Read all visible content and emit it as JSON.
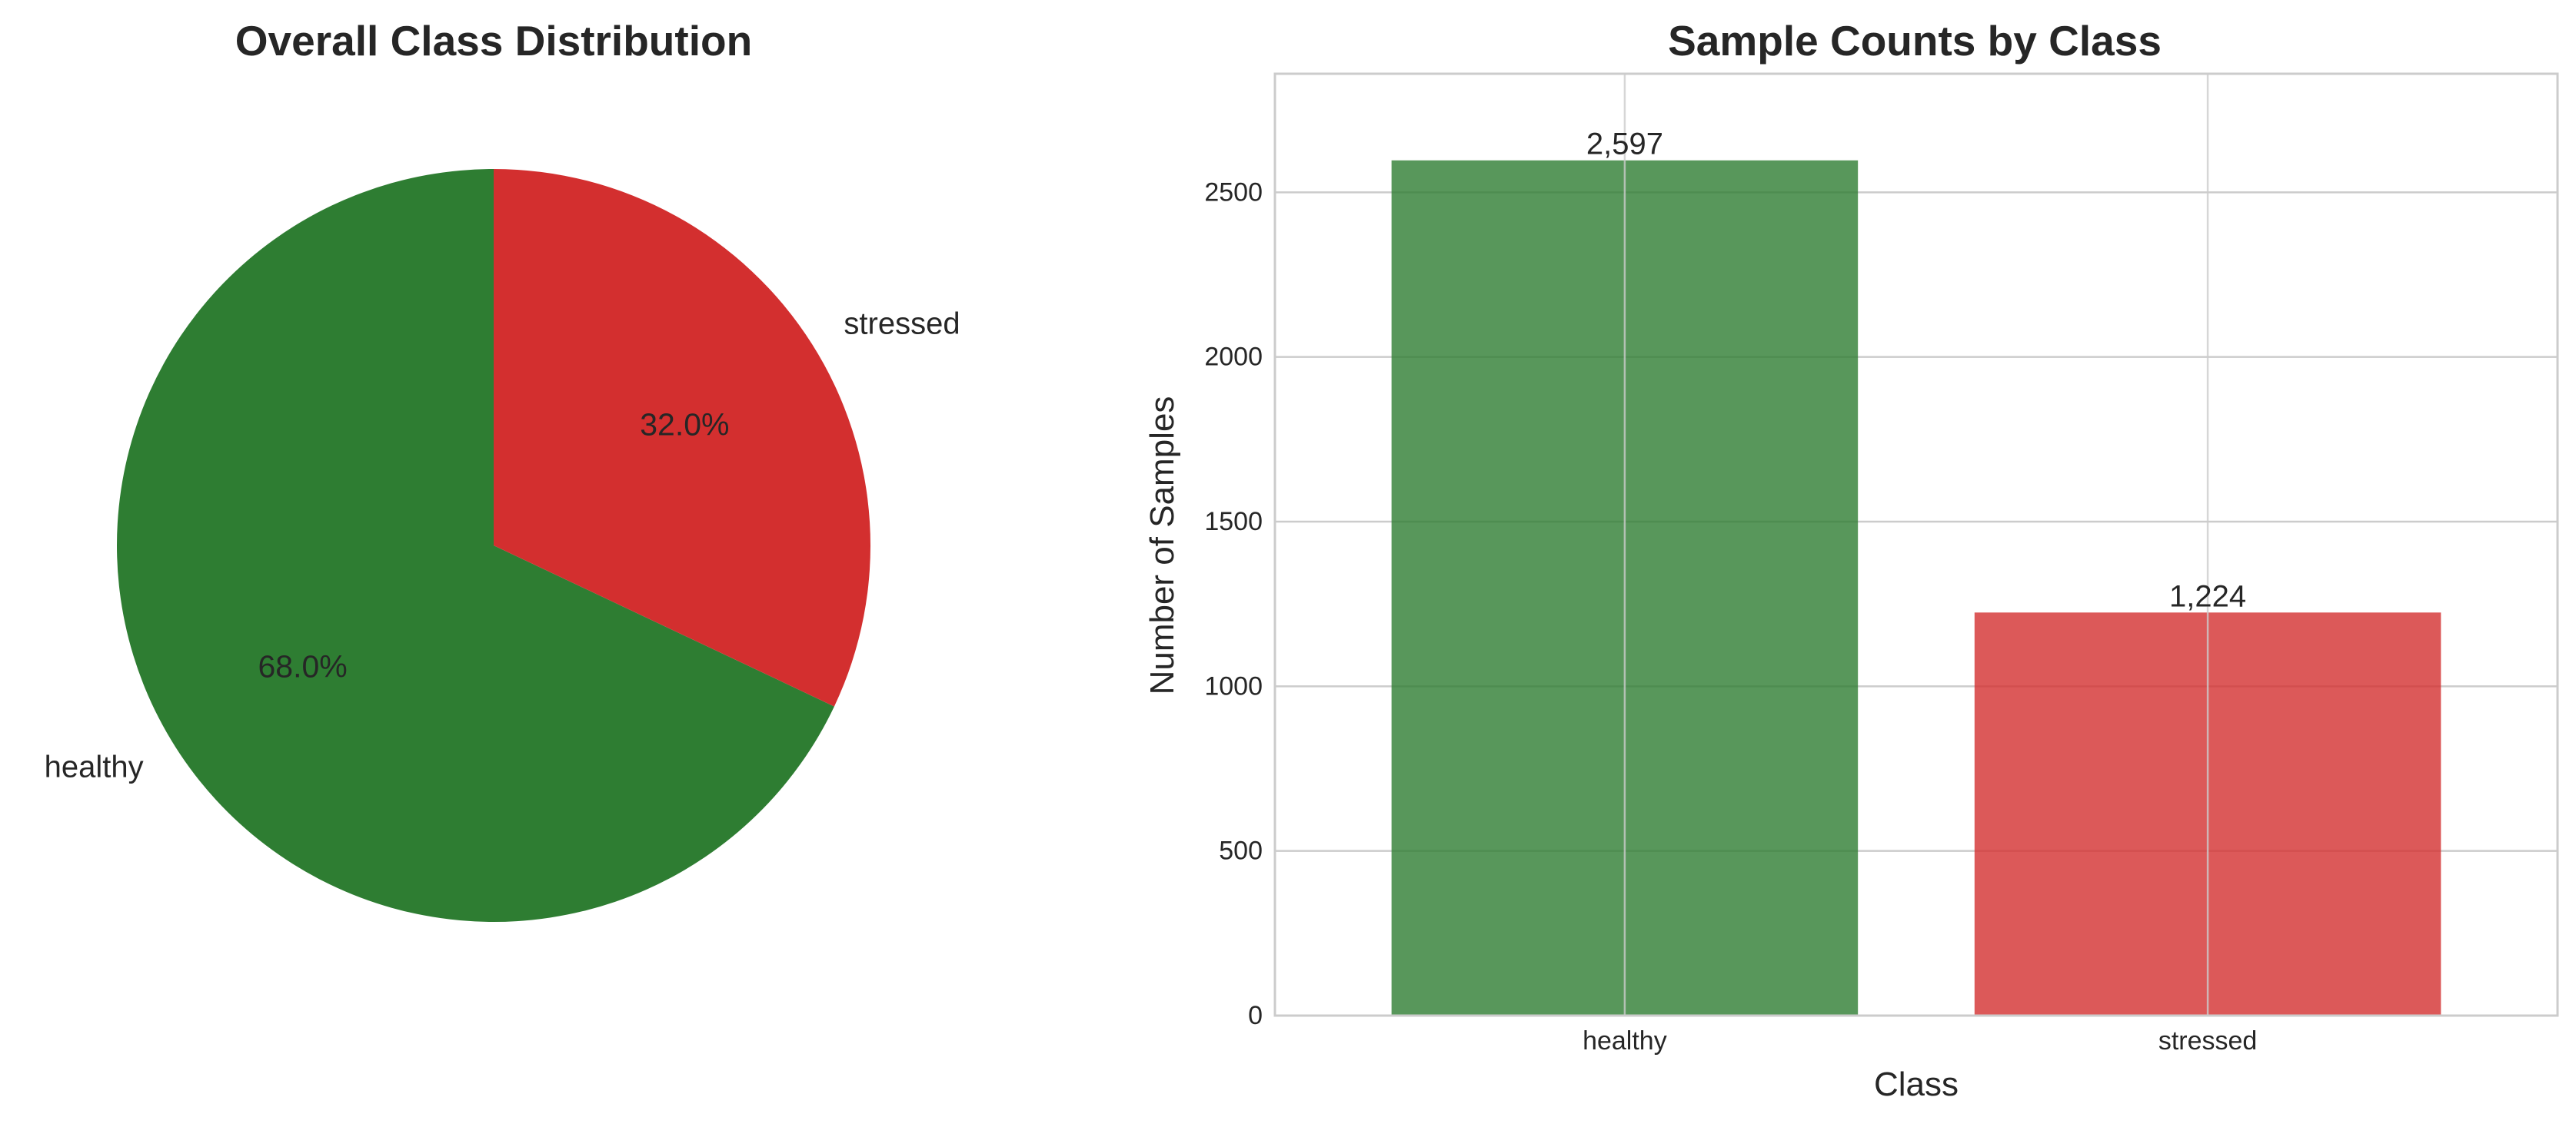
{
  "chart_data": [
    {
      "type": "pie",
      "title": "Overall Class Distribution",
      "slices": [
        {
          "label": "healthy",
          "value": 2597,
          "percent_label": "68.0%",
          "color": "#2e7d32"
        },
        {
          "label": "stressed",
          "value": 1224,
          "percent_label": "32.0%",
          "color": "#d32f2f"
        }
      ],
      "start_angle_deg": 90,
      "direction": "counterclockwise"
    },
    {
      "type": "bar",
      "title": "Sample Counts by Class",
      "categories": [
        "healthy",
        "stressed"
      ],
      "values": [
        2597,
        1224
      ],
      "value_labels": [
        "2,597",
        "1,224"
      ],
      "colors": [
        "#2e7d32",
        "#d32f2f"
      ],
      "bar_opacity": 0.8,
      "xlabel": "Class",
      "ylabel": "Number of Samples",
      "ylim": [
        0,
        2860
      ],
      "yticks": [
        0,
        500,
        1000,
        1500,
        2000,
        2500
      ],
      "grid": true
    }
  ]
}
